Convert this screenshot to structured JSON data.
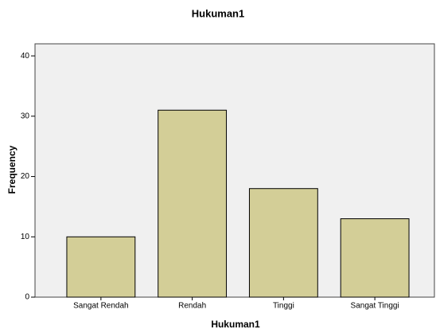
{
  "chart_data": {
    "type": "bar",
    "title": "Hukuman1",
    "xlabel": "Hukuman1",
    "ylabel": "Frequency",
    "categories": [
      "Sangat Rendah",
      "Rendah",
      "Tinggi",
      "Sangat Tinggi"
    ],
    "values": [
      10,
      31,
      18,
      13
    ],
    "color": "#d3ce97",
    "ylim": [
      0,
      42
    ],
    "yticks": [
      0,
      10,
      20,
      30,
      40
    ],
    "grid": false
  }
}
